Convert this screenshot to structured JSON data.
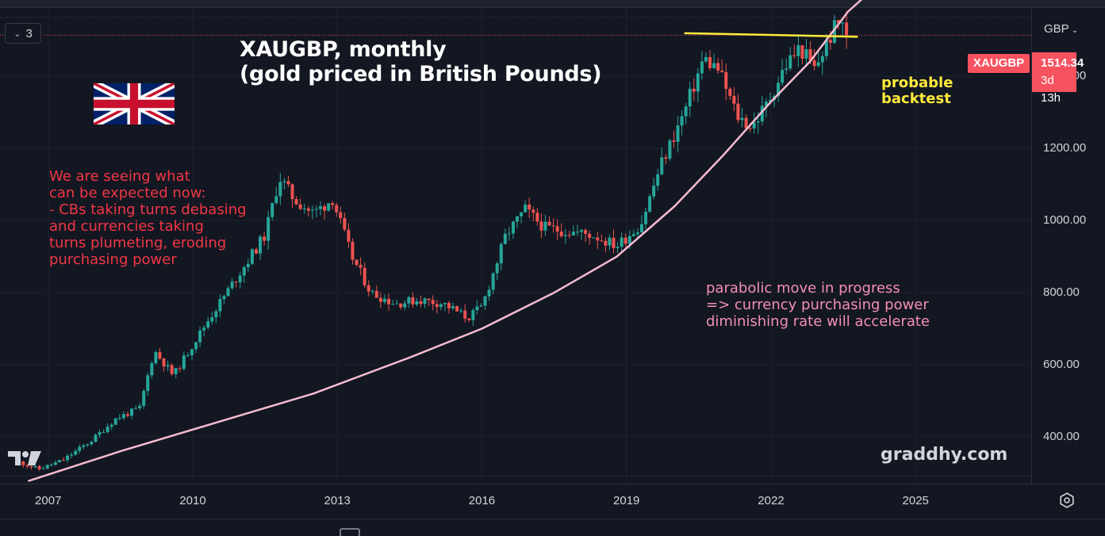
{
  "toolbar": {
    "indicator_count": "3"
  },
  "annotations": {
    "title_line1": "XAUGBP, monthly",
    "title_line2": "(gold priced in British Pounds)",
    "red_note": "We are seeing what\ncan be expected now:\n- CBs taking turns debasing\nand currencies taking\nturns plumeting, eroding\npurchasing power",
    "pink_note": "parabolic move in progress\n=> currency purchasing power\ndiminishing rate will accelerate",
    "yellow_note": "probable\nbacktest",
    "watermark": "graddhy.com"
  },
  "price_scale": {
    "currency": "GBP"
  },
  "last_price": {
    "symbol": "XAUGBP",
    "value": "1514.34",
    "countdown": "3d 13h"
  },
  "colors": {
    "up": "#26a69a",
    "down": "#ef5350",
    "background": "#131722",
    "accent_red": "#f7525f",
    "curve": "#f8bbd0",
    "resistance": "#ffeb3b",
    "note_red": "#f23645",
    "note_pink": "#f48fb1"
  },
  "icons": [
    "chevron-down-icon",
    "tradingview-logo",
    "uk-flag",
    "settings-icon",
    "calendar-icon"
  ],
  "chart_data": {
    "type": "candlestick",
    "symbol": "XAUGBP",
    "interval": "monthly",
    "ylim": [
      270,
      1590
    ],
    "yticks": [
      400,
      600,
      800,
      1000,
      1200,
      1400
    ],
    "ytick_labels": [
      "400.00",
      "600.00",
      "800.00",
      "1000.00",
      "1200.00",
      "1400.00"
    ],
    "xlim": [
      2006.0,
      2027.4
    ],
    "xticks": [
      2007,
      2010,
      2013,
      2016,
      2019,
      2022,
      2025
    ],
    "xtick_labels": [
      "2007",
      "2010",
      "2013",
      "2016",
      "2019",
      "2022",
      "2025"
    ],
    "series_anchors": [
      [
        2006.4,
        330
      ],
      [
        2006.8,
        310
      ],
      [
        2007.3,
        335
      ],
      [
        2007.9,
        390
      ],
      [
        2008.4,
        450
      ],
      [
        2008.9,
        480
      ],
      [
        2009.2,
        640
      ],
      [
        2009.6,
        570
      ],
      [
        2010.3,
        720
      ],
      [
        2010.9,
        840
      ],
      [
        2011.5,
        960
      ],
      [
        2011.8,
        1120
      ],
      [
        2012.1,
        1060
      ],
      [
        2012.5,
        1020
      ],
      [
        2012.9,
        1060
      ],
      [
        2013.3,
        900
      ],
      [
        2013.7,
        800
      ],
      [
        2014.2,
        770
      ],
      [
        2014.7,
        780
      ],
      [
        2015.2,
        770
      ],
      [
        2015.7,
        730
      ],
      [
        2016.0,
        760
      ],
      [
        2016.5,
        960
      ],
      [
        2016.9,
        1030
      ],
      [
        2017.3,
        980
      ],
      [
        2017.8,
        970
      ],
      [
        2018.3,
        960
      ],
      [
        2018.8,
        930
      ],
      [
        2019.3,
        990
      ],
      [
        2019.7,
        1150
      ],
      [
        2020.2,
        1300
      ],
      [
        2020.6,
        1450
      ],
      [
        2020.9,
        1420
      ],
      [
        2021.3,
        1290
      ],
      [
        2021.6,
        1260
      ],
      [
        2021.9,
        1320
      ],
      [
        2022.3,
        1430
      ],
      [
        2022.6,
        1480
      ],
      [
        2022.9,
        1420
      ],
      [
        2023.3,
        1530
      ],
      [
        2023.5,
        1560
      ],
      [
        2023.6,
        1514.34
      ]
    ],
    "last_close": 1514.34,
    "overlays": {
      "parabolic_curve": [
        [
          2006.6,
          278
        ],
        [
          2008.5,
          360
        ],
        [
          2010.5,
          440
        ],
        [
          2012.5,
          520
        ],
        [
          2014.5,
          620
        ],
        [
          2016.0,
          700
        ],
        [
          2017.5,
          800
        ],
        [
          2018.8,
          900
        ],
        [
          2020.0,
          1040
        ],
        [
          2021.0,
          1180
        ],
        [
          2022.0,
          1330
        ],
        [
          2022.8,
          1440
        ],
        [
          2023.6,
          1580
        ],
        [
          2024.1,
          1640
        ]
      ],
      "resistance_line": {
        "from": [
          2020.2,
          1520
        ],
        "to": [
          2023.8,
          1510
        ]
      }
    }
  }
}
